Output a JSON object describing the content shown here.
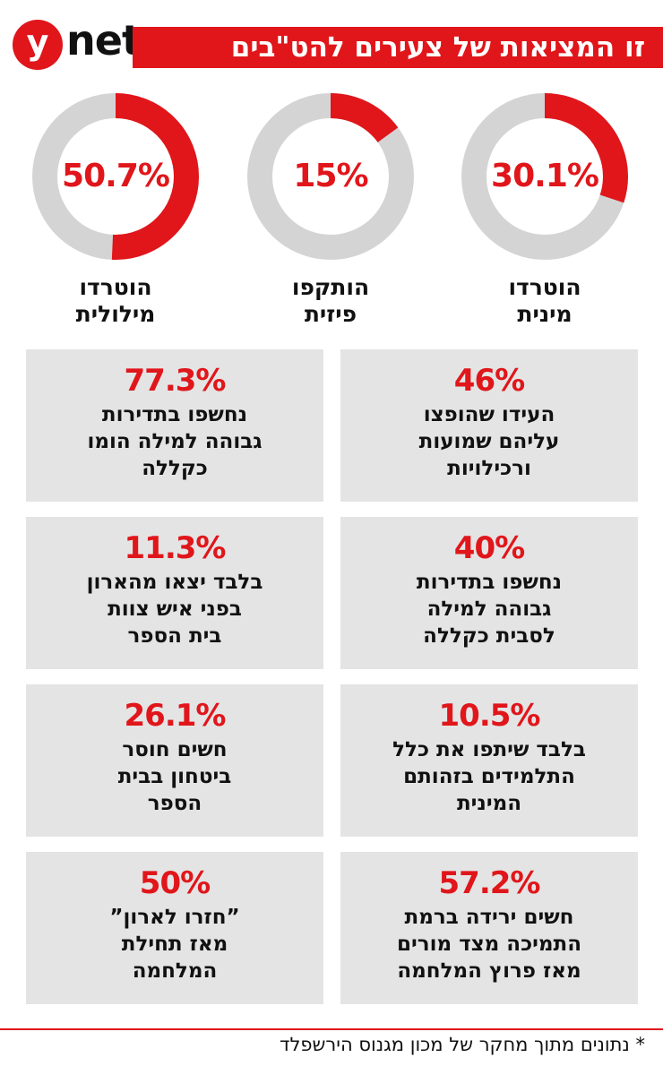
{
  "logo": {
    "y": "y",
    "net": "net"
  },
  "title": "זו המציאות של צעירים להט\"בים",
  "colors": {
    "accent": "#e0161b",
    "ring": "#d4d4d4",
    "box": "#e4e4e4"
  },
  "chart_data": [
    {
      "type": "pie",
      "style": "donut",
      "items": [
        {
          "label_line1": "הוטרדו",
          "label_line2": "מינית",
          "value_text": "30.1%",
          "value": 30.1
        },
        {
          "label_line1": "הותקפו",
          "label_line2": "פיזית",
          "value_text": "15%",
          "value": 15
        },
        {
          "label_line1": "הוטרדו",
          "label_line2": "מילולית",
          "value_text": "50.7%",
          "value": 50.7
        }
      ]
    },
    {
      "type": "table",
      "cards": [
        {
          "value": "46%",
          "line1": "העידו שהופצו",
          "line2": "עליהם שמועות",
          "line3": "ורכילויות"
        },
        {
          "value": "77.3%",
          "line1": "נחשפו בתדירות",
          "line2": "גבוהה למילה הומו",
          "line3": "כקללה"
        },
        {
          "value": "40%",
          "line1": "נחשפו בתדירות",
          "line2": "גבוהה למילה",
          "line3": "לסבית כקללה"
        },
        {
          "value": "11.3%",
          "line1": "בלבד יצאו מהארון",
          "line2": "בפני איש צוות",
          "line3": "בית הספר"
        },
        {
          "value": "10.5%",
          "line1": "בלבד שיתפו את כלל",
          "line2": "התלמידים בזהותם",
          "line3": "המינית"
        },
        {
          "value": "26.1%",
          "line1": "חשים חוסר",
          "line2": "ביטחון בבית",
          "line3": "הספר"
        },
        {
          "value": "57.2%",
          "line1": "חשים ירידה ברמת",
          "line2": "התמיכה מצד מורים",
          "line3": "מאז פרוץ המלחמה"
        },
        {
          "value": "50%",
          "line1": "”חזרו לארון”",
          "line2": "מאז תחילת",
          "line3": "המלחמה"
        }
      ]
    }
  ],
  "footer": "* נתונים מתוך מחקר של מכון מגנוס הירשפלד"
}
